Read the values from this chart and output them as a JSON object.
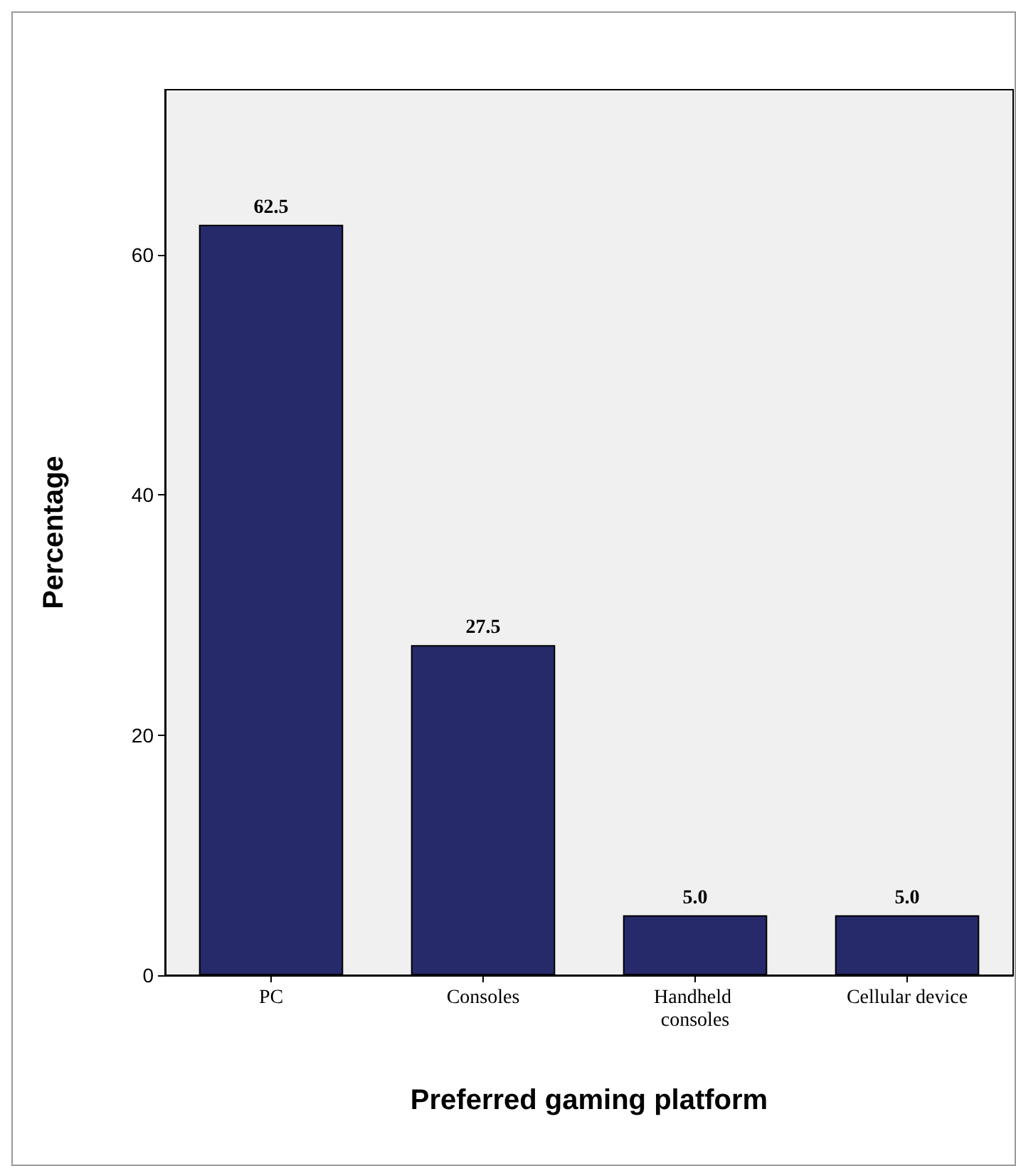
{
  "chart_data": {
    "type": "bar",
    "xlabel": "Preferred gaming platform",
    "ylabel": "Percentage",
    "categories": [
      "PC",
      "Consoles",
      "Handheld consoles",
      "Cellular device"
    ],
    "values": [
      62.5,
      27.5,
      5.0,
      5.0
    ],
    "color": "#262a6b",
    "ylim": [
      0,
      73.75
    ],
    "yticks": [
      0,
      20,
      40,
      60
    ],
    "value_labels": [
      "62.5",
      "27.5",
      "5.0",
      "5.0"
    ]
  }
}
